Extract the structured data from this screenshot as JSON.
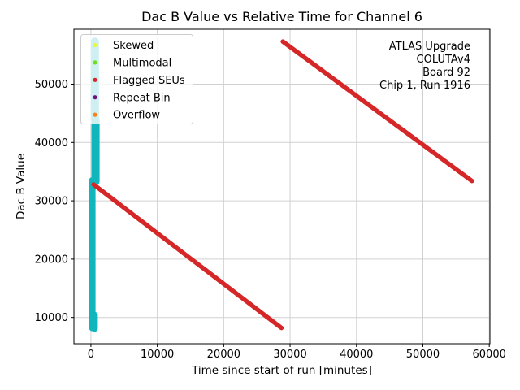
{
  "figure": {
    "background": "#ffffff"
  },
  "chart_data": {
    "type": "scatter",
    "title": "Dac B Value vs Relative Time for Channel 6",
    "xlabel": "Time since start of run [minutes]",
    "ylabel": "Dac B Value",
    "xlim": [
      -2560,
      60100
    ],
    "ylim": [
      5500,
      59400
    ],
    "xticks": [
      0,
      10000,
      20000,
      30000,
      40000,
      50000,
      60000
    ],
    "yticks": [
      10000,
      20000,
      30000,
      40000,
      50000
    ],
    "grid": true,
    "grid_color": "#d0d0d0",
    "spine_color": "#000000",
    "legend": {
      "position": "upper left",
      "frame_fill": "rgba(255,255,255,0.8)",
      "frame_border": "#cccccc",
      "entries": [
        {
          "label": "Skewed",
          "color": "#e8f542"
        },
        {
          "label": "Multimodal",
          "color": "#71dd1c"
        },
        {
          "label": "Flagged SEUs",
          "color": "#d62728"
        },
        {
          "label": "Repeat Bin",
          "color": "#6e1181"
        },
        {
          "label": "Overflow",
          "color": "#f8821e"
        }
      ]
    },
    "annotation": {
      "align": "right",
      "lines": [
        "ATLAS Upgrade",
        "COLUTAv4",
        "Board 92",
        "Chip 1, Run 1916"
      ]
    },
    "series": [
      {
        "name": "rapid-ramp-top",
        "color": "#0fb6bd",
        "width": 10,
        "points": [
          [
            600,
            57300
          ],
          [
            600,
            44000
          ]
        ]
      },
      {
        "name": "rapid-ramp-mid",
        "color": "#0fb6bd",
        "width": 10,
        "points": [
          [
            700,
            44000
          ],
          [
            700,
            33300
          ]
        ]
      },
      {
        "name": "rapid-ramp-lower",
        "color": "#0fb6bd",
        "width": 8,
        "points": [
          [
            200,
            33500
          ],
          [
            200,
            8200
          ]
        ]
      },
      {
        "name": "rapid-ramp-tail",
        "color": "#0fb6bd",
        "width": 8,
        "points": [
          [
            550,
            10400
          ],
          [
            550,
            8100
          ]
        ]
      },
      {
        "name": "slow-ramp-first",
        "color": "#d62728",
        "width": 5.5,
        "points": [
          [
            400,
            32800
          ],
          [
            28700,
            8200
          ]
        ]
      },
      {
        "name": "slow-ramp-second",
        "color": "#d62728",
        "width": 5.5,
        "points": [
          [
            28900,
            57300
          ],
          [
            57400,
            33400
          ]
        ]
      }
    ]
  }
}
